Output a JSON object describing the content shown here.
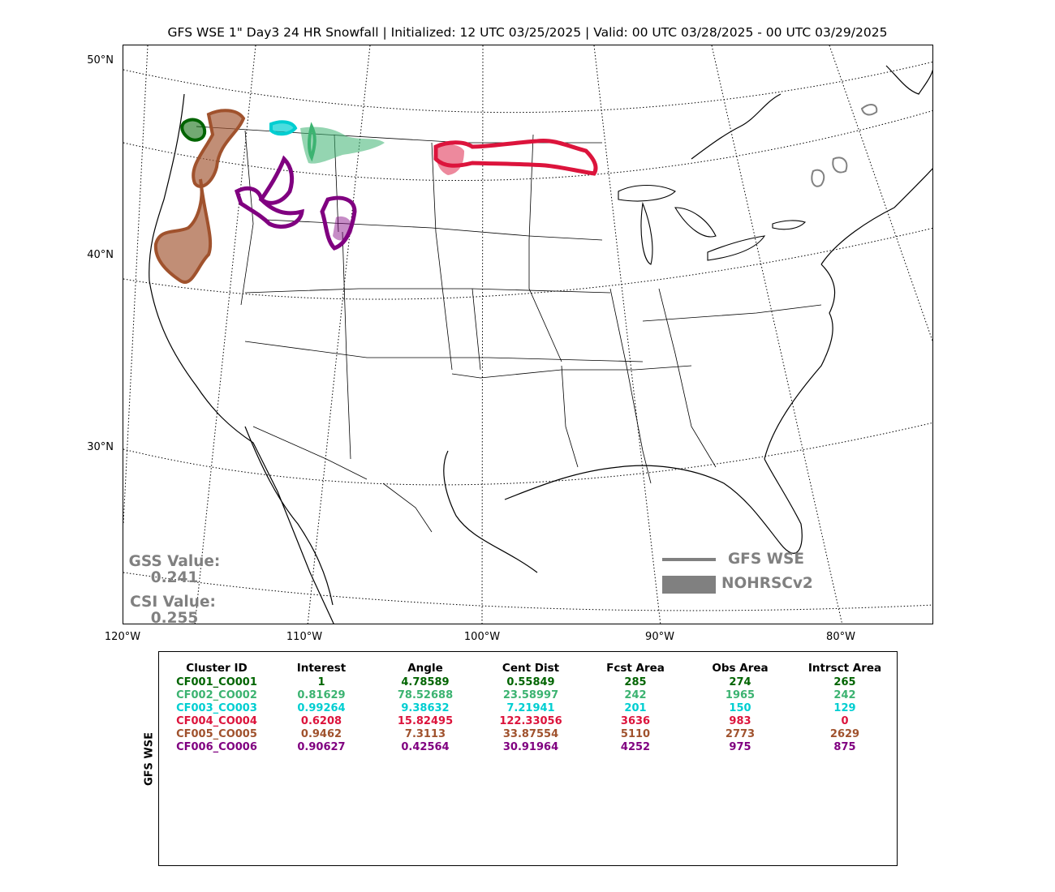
{
  "title": "GFS WSE 1\" Day3 24 HR Snowfall | Initialized: 12 UTC 03/25/2025 | Valid: 00 UTC 03/28/2025 - 00 UTC 03/29/2025",
  "lat_labels": [
    "50°N",
    "40°N",
    "30°N"
  ],
  "lon_labels": [
    "120°W",
    "110°W",
    "100°W",
    "90°W",
    "80°W"
  ],
  "scores": {
    "gss_label": "GSS Value:",
    "gss_value": "0.241",
    "csi_label": "CSI Value:",
    "csi_value": "0.255"
  },
  "legend": {
    "forecast_label": "GFS WSE",
    "observed_label": "NOHRSCv2",
    "forecast_color": "#808080",
    "observed_color": "#808080"
  },
  "table": {
    "side_label": "GFS WSE",
    "headers": [
      "Cluster ID",
      "Interest",
      "Angle",
      "Cent Dist",
      "Fcst Area",
      "Obs Area",
      "Intrsct Area"
    ],
    "rows": [
      {
        "color": "#006400",
        "cells": [
          "CF001_CO001",
          "1",
          "4.78589",
          "0.55849",
          "285",
          "274",
          "265"
        ]
      },
      {
        "color": "#3cb371",
        "cells": [
          "CF002_CO002",
          "0.81629",
          "78.52688",
          "23.58997",
          "242",
          "1965",
          "242"
        ]
      },
      {
        "color": "#00ced1",
        "cells": [
          "CF003_CO003",
          "0.99264",
          "9.38632",
          "7.21941",
          "201",
          "150",
          "129"
        ]
      },
      {
        "color": "#dc143c",
        "cells": [
          "CF004_CO004",
          "0.6208",
          "15.82495",
          "122.33056",
          "3636",
          "983",
          "0"
        ]
      },
      {
        "color": "#a0522d",
        "cells": [
          "CF005_CO005",
          "0.9462",
          "7.3113",
          "33.87554",
          "5110",
          "2773",
          "2629"
        ]
      },
      {
        "color": "#800080",
        "cells": [
          "CF006_CO006",
          "0.90627",
          "0.42564",
          "30.91964",
          "4252",
          "975",
          "875"
        ]
      }
    ]
  },
  "clusters": [
    {
      "id": "CF001_CO001",
      "color": "#006400"
    },
    {
      "id": "CF002_CO002",
      "color": "#3cb371"
    },
    {
      "id": "CF003_CO003",
      "color": "#00ced1"
    },
    {
      "id": "CF004_CO004",
      "color": "#dc143c"
    },
    {
      "id": "CF005_CO005",
      "color": "#a0522d"
    },
    {
      "id": "CF006_CO006",
      "color": "#800080"
    },
    {
      "id": "unmatched",
      "color": "#808080"
    }
  ]
}
